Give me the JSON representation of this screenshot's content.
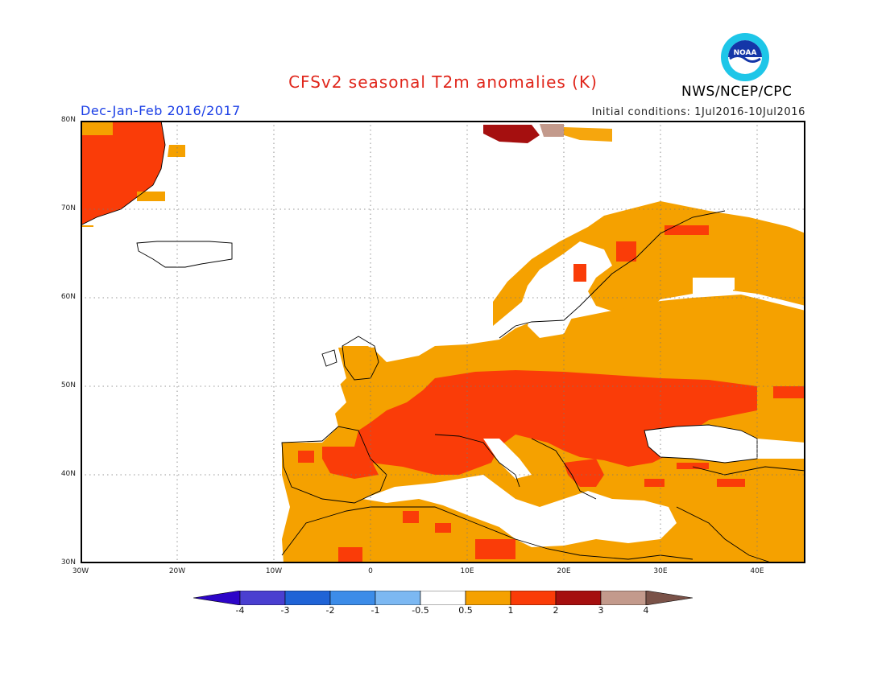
{
  "title": "CFSv2 seasonal T2m anomalies (K)",
  "season": "Dec-Jan-Feb 2016/2017",
  "initial_conditions": "Initial conditions: 1Jul2016-10Jul2016",
  "agency": "NWS/NCEP/CPC",
  "logo_icon": "noaa-logo-icon",
  "map": {
    "lon_range": [
      -30,
      45
    ],
    "lat_range": [
      30,
      80
    ],
    "lat_ticks": [
      "80N",
      "70N",
      "60N",
      "50N",
      "40N",
      "30N"
    ],
    "lon_ticks": [
      "30W",
      "20W",
      "10W",
      "0",
      "10E",
      "20E",
      "30E",
      "40E"
    ],
    "gridlines": "dotted"
  },
  "colorbar": {
    "labels": [
      "-4",
      "-3",
      "-2",
      "-1",
      "-0.5",
      "0.5",
      "1",
      "2",
      "3",
      "4"
    ],
    "colors": [
      "#2d05c8",
      "#4a3fd0",
      "#1f63d6",
      "#3c8ce8",
      "#7cb8f2",
      "#ffffff",
      "#f5a100",
      "#fa3c08",
      "#a50f0f",
      "#c39a8c",
      "#7a5248"
    ]
  },
  "anomaly_colors": {
    "0.5-1": "#f5a100",
    "1-2": "#fa3c08",
    "2-3": "#a50f0f",
    "3-4": "#c39a8c"
  }
}
